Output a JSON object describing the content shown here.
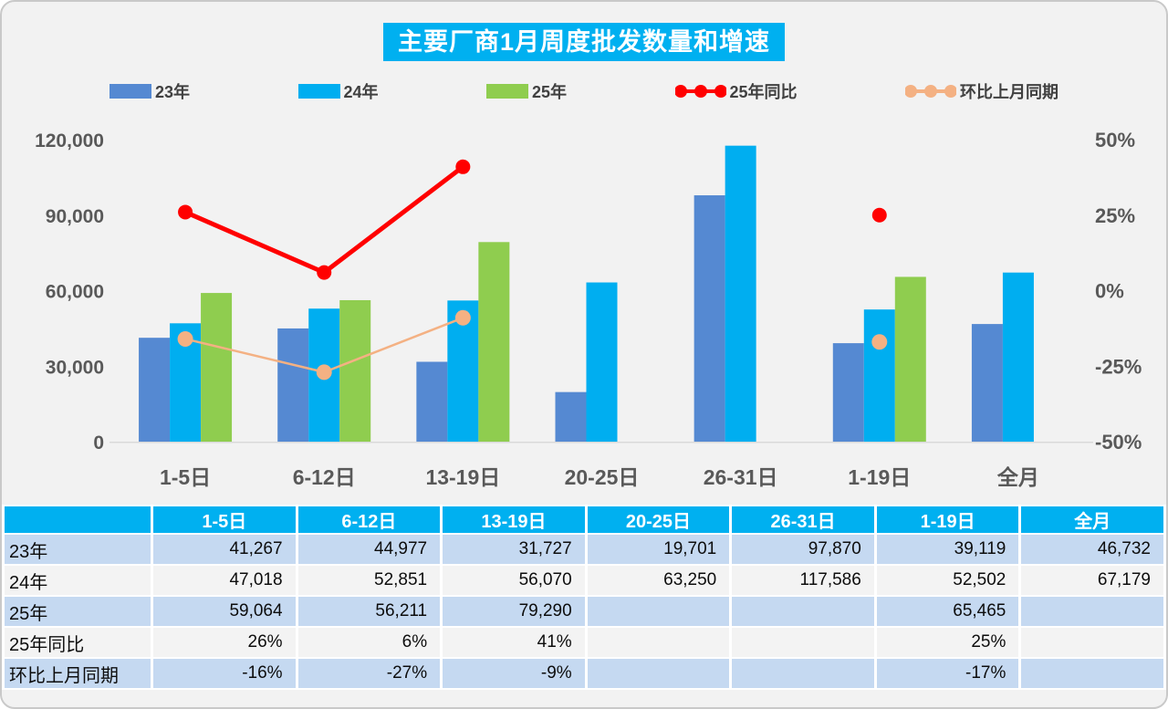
{
  "header": {
    "title": "主要厂商1月周度批发数量和增速"
  },
  "colors": {
    "accent_cyan": "#00B0F0",
    "bar_23": "#5589D2",
    "bar_24": "#00AEF0",
    "bar_25": "#8FCD4F",
    "line_yoy": "#FF0000",
    "line_mom": "#F4B183",
    "axis_text": "#595959",
    "table_row_blue": "#C5D9F1",
    "table_row_white": "#F3F3F3",
    "chart_bg": "#F2F2F2"
  },
  "legend": {
    "items": [
      {
        "label": "23年",
        "type": "bar",
        "color": "#5589D2"
      },
      {
        "label": "24年",
        "type": "bar",
        "color": "#00AEF0"
      },
      {
        "label": "25年",
        "type": "bar",
        "color": "#8FCD4F"
      },
      {
        "label": "25年同比",
        "type": "line",
        "color": "#FF0000"
      },
      {
        "label": "环比上月同期",
        "type": "line",
        "color": "#F4B183"
      }
    ]
  },
  "chart_data": {
    "type": "bar",
    "subtype": "grouped-bar-with-lines",
    "title": "主要厂商1月周度批发数量和增速",
    "categories": [
      "1-5日",
      "6-12日",
      "13-19日",
      "20-25日",
      "26-31日",
      "1-19日",
      "全月"
    ],
    "series": [
      {
        "name": "23年",
        "type": "bar",
        "axis": "left",
        "color": "#5589D2",
        "values": [
          41267,
          44977,
          31727,
          19701,
          97870,
          39119,
          46732
        ]
      },
      {
        "name": "24年",
        "type": "bar",
        "axis": "left",
        "color": "#00AEF0",
        "values": [
          47018,
          52851,
          56070,
          63250,
          117586,
          52502,
          67179
        ]
      },
      {
        "name": "25年",
        "type": "bar",
        "axis": "left",
        "color": "#8FCD4F",
        "values": [
          59064,
          56211,
          79290,
          null,
          null,
          65465,
          null
        ]
      },
      {
        "name": "25年同比",
        "type": "line",
        "axis": "right",
        "color": "#FF0000",
        "values": [
          26,
          6,
          41,
          null,
          null,
          25,
          null
        ]
      },
      {
        "name": "环比上月同期",
        "type": "line",
        "axis": "right",
        "color": "#F4B183",
        "values": [
          -16,
          -27,
          -9,
          null,
          null,
          -17,
          null
        ]
      }
    ],
    "left_axis": {
      "min": 0,
      "max": 120000,
      "ticks": [
        {
          "label": "0",
          "value": 0
        },
        {
          "label": "30,000",
          "value": 30000
        },
        {
          "label": "60,000",
          "value": 60000
        },
        {
          "label": "90,000",
          "value": 90000
        },
        {
          "label": "120,000",
          "value": 120000
        }
      ]
    },
    "right_axis": {
      "min": -50,
      "max": 50,
      "ticks": [
        {
          "label": "-50%",
          "value": -50
        },
        {
          "label": "-25%",
          "value": -25
        },
        {
          "label": "0%",
          "value": 0
        },
        {
          "label": "25%",
          "value": 25
        },
        {
          "label": "50%",
          "value": 50
        }
      ]
    },
    "grid": false,
    "legend_position": "top"
  },
  "table": {
    "headers": [
      "",
      "1-5日",
      "6-12日",
      "13-19日",
      "20-25日",
      "26-31日",
      "1-19日",
      "全月"
    ],
    "rows": [
      {
        "label": "23年",
        "cells": [
          "41,267",
          "44,977",
          "31,727",
          "19,701",
          "97,870",
          "39,119",
          "46,732"
        ]
      },
      {
        "label": "24年",
        "cells": [
          "47,018",
          "52,851",
          "56,070",
          "63,250",
          "117,586",
          "52,502",
          "67,179"
        ]
      },
      {
        "label": "25年",
        "cells": [
          "59,064",
          "56,211",
          "79,290",
          "",
          "",
          "65,465",
          ""
        ]
      },
      {
        "label": "25年同比",
        "cells": [
          "26%",
          "6%",
          "41%",
          "",
          "",
          "25%",
          ""
        ]
      },
      {
        "label": "环比上月同期",
        "cells": [
          "-16%",
          "-27%",
          "-9%",
          "",
          "",
          "-17%",
          ""
        ]
      }
    ]
  }
}
